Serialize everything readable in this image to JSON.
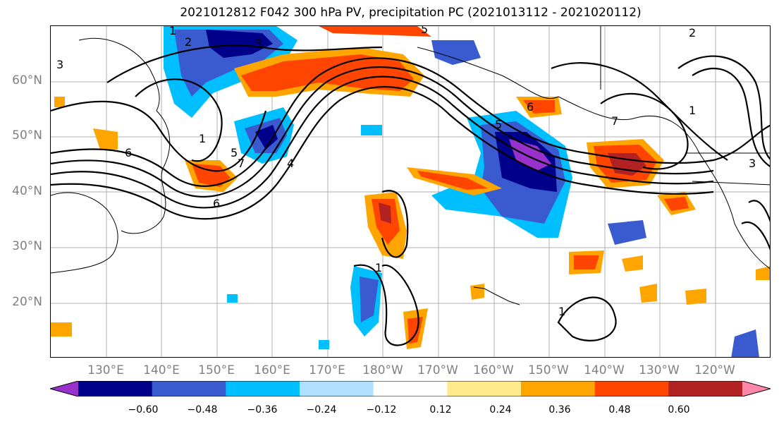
{
  "title": "2021012812 F042 300 hPa PV, precipitation PC (2021013112 - 2021020112)",
  "lat_labels": [
    "60°N",
    "50°N",
    "40°N",
    "30°N",
    "20°N"
  ],
  "lon_labels": [
    "130°E",
    "140°E",
    "150°E",
    "160°E",
    "170°E",
    "180°W",
    "170°W",
    "160°W",
    "150°W",
    "140°W",
    "130°W",
    "120°W"
  ],
  "colorbar": {
    "ticks": [
      "−0.60",
      "−0.48",
      "−0.36",
      "−0.24",
      "−0.12",
      "0.12",
      "0.24",
      "0.36",
      "0.48",
      "0.60"
    ],
    "colors": [
      "#9932CC",
      "#00008B",
      "#3A5BD0",
      "#00BFFF",
      "#B0E0FF",
      "#FFFFFF",
      "#FFE98A",
      "#FFA500",
      "#FF4500",
      "#B22222",
      "#FF88AA"
    ]
  },
  "contour_labels": [
    "1",
    "2",
    "3",
    "4",
    "5",
    "6",
    "7",
    "6",
    "1",
    "3",
    "5",
    "7",
    "6",
    "4",
    "1",
    "1",
    "1",
    "6",
    "7",
    "2",
    "3",
    "5",
    "1",
    "3",
    "6"
  ],
  "legend_colors": {
    "purple": "#9932CC",
    "darkblue": "#00008B",
    "blue": "#3A5BD0",
    "cyan": "#00BFFF",
    "lightblue": "#B0E0FF",
    "yellow": "#FFE98A",
    "orange": "#FFA500",
    "red": "#FF4500",
    "darkred": "#B22222",
    "pink": "#FF88AA"
  }
}
